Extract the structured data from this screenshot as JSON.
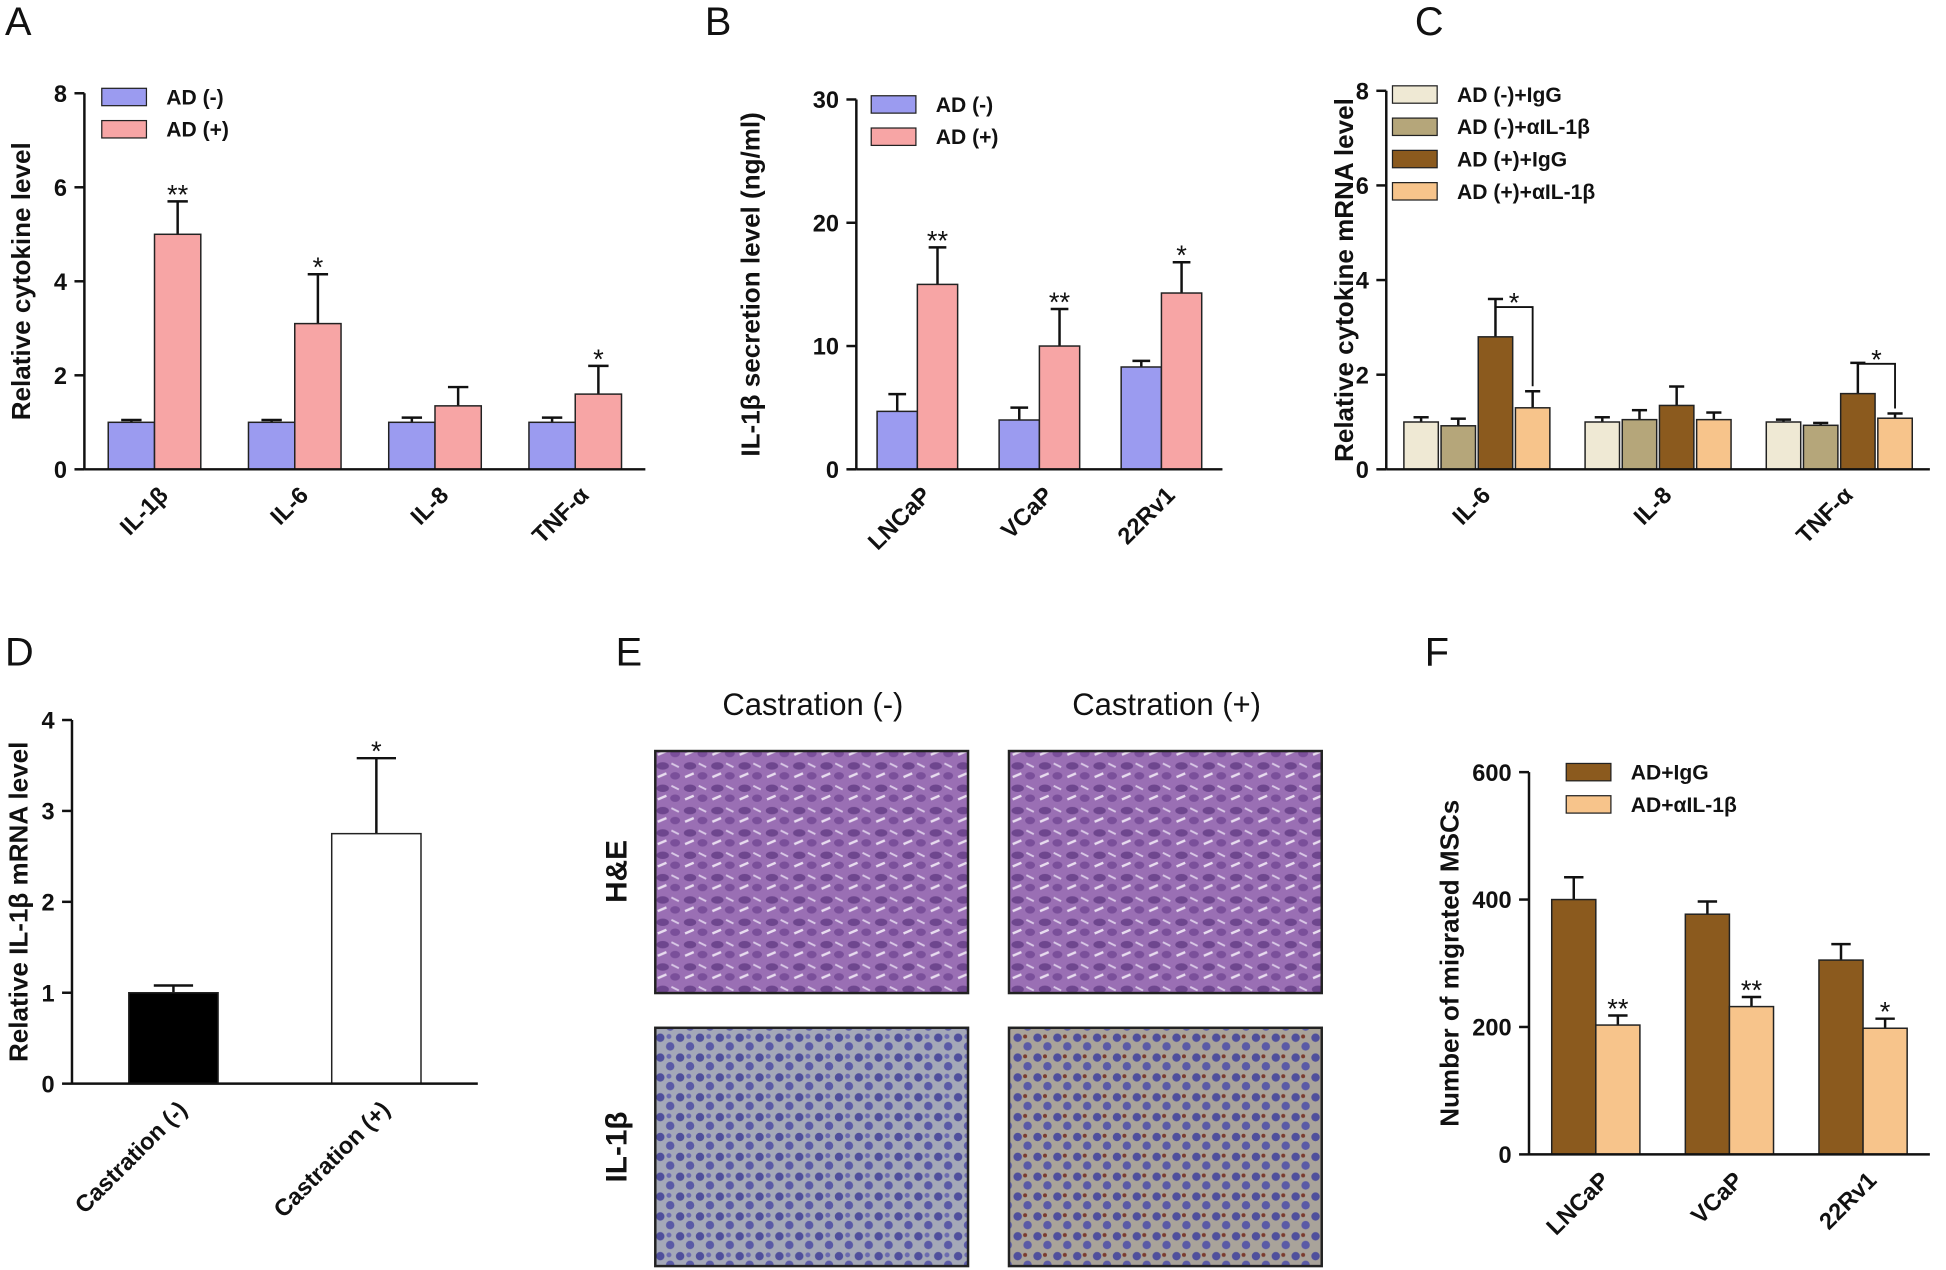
{
  "chart_data": [
    {
      "panel": "A",
      "type": "bar",
      "ylabel": "Relative cytokine level",
      "categories": [
        "IL-1β",
        "IL-6",
        "IL-8",
        "TNF-α"
      ],
      "ylim": [
        0,
        8
      ],
      "yticks": [
        0,
        2,
        4,
        6,
        8
      ],
      "legend": "upper left",
      "series": [
        {
          "name": "AD (-)",
          "color": "#9b9bf0",
          "values": [
            1.0,
            1.0,
            1.0,
            1.0
          ],
          "errors": [
            0.05,
            0.05,
            0.1,
            0.1
          ],
          "significance": [
            null,
            null,
            null,
            null
          ]
        },
        {
          "name": "AD (+)",
          "color": "#f7a5a5",
          "values": [
            5.0,
            3.1,
            1.35,
            1.6
          ],
          "errors": [
            0.7,
            1.05,
            0.4,
            0.6
          ],
          "significance": [
            "**",
            "*",
            null,
            "*"
          ]
        }
      ]
    },
    {
      "panel": "B",
      "type": "bar",
      "ylabel": "IL-1β secretion level (ng/ml)",
      "categories": [
        "LNCaP",
        "VCaP",
        "22Rv1"
      ],
      "ylim": [
        0,
        30
      ],
      "yticks": [
        0,
        10,
        20,
        30
      ],
      "legend": "upper left",
      "series": [
        {
          "name": "AD (-)",
          "color": "#9b9bf0",
          "values": [
            4.7,
            4.0,
            8.3
          ],
          "errors": [
            1.4,
            1.0,
            0.5
          ],
          "significance": [
            null,
            null,
            null
          ]
        },
        {
          "name": "AD (+)",
          "color": "#f7a5a5",
          "values": [
            15.0,
            10.0,
            14.3
          ],
          "errors": [
            3.0,
            3.0,
            2.5
          ],
          "significance": [
            "**",
            "**",
            "*"
          ]
        }
      ]
    },
    {
      "panel": "C",
      "type": "bar",
      "ylabel": "Relative cytokine mRNA level",
      "categories": [
        "IL-6",
        "IL-8",
        "TNF-α"
      ],
      "ylim": [
        0,
        8
      ],
      "yticks": [
        0,
        2,
        4,
        6,
        8
      ],
      "legend": "upper left",
      "significance_bracket": true,
      "series": [
        {
          "name": "AD (-)+IgG",
          "color": "#efe9d4",
          "values": [
            1.0,
            1.0,
            1.0
          ],
          "errors": [
            0.1,
            0.1,
            0.05
          ],
          "significance": [
            null,
            null,
            null
          ]
        },
        {
          "name": "AD (-)+αIL-1β",
          "color": "#b5a67a",
          "values": [
            0.92,
            1.05,
            0.93
          ],
          "errors": [
            0.15,
            0.2,
            0.05
          ],
          "significance": [
            null,
            null,
            null
          ]
        },
        {
          "name": "AD (+)+IgG",
          "color": "#8b5a1e",
          "values": [
            2.8,
            1.35,
            1.6
          ],
          "errors": [
            0.8,
            0.4,
            0.65
          ],
          "significance": [
            null,
            null,
            null
          ]
        },
        {
          "name": "AD (+)+αIL-1β",
          "color": "#f7c48b",
          "values": [
            1.3,
            1.05,
            1.08
          ],
          "errors": [
            0.35,
            0.15,
            0.1
          ],
          "significance": [
            "*",
            null,
            "*"
          ]
        }
      ]
    },
    {
      "panel": "D",
      "type": "bar",
      "ylabel": "Relative IL-1β mRNA level",
      "categories": [
        "Castration (-)",
        "Castration (+)"
      ],
      "ylim": [
        0,
        4
      ],
      "yticks": [
        0,
        1,
        2,
        3,
        4
      ],
      "values": [
        1.0,
        2.75
      ],
      "errors": [
        0.08,
        0.83
      ],
      "colors": [
        "#000000",
        "#ffffff"
      ],
      "significance": [
        null,
        "*"
      ]
    },
    {
      "panel": "F",
      "type": "bar",
      "ylabel": "Number of migrated MSCs",
      "categories": [
        "LNCaP",
        "VCaP",
        "22Rv1"
      ],
      "ylim": [
        0,
        600
      ],
      "yticks": [
        0,
        200,
        400,
        600
      ],
      "legend": "upper left",
      "series": [
        {
          "name": "AD+IgG",
          "color": "#8b5a1e",
          "values": [
            400,
            377,
            305
          ],
          "errors": [
            35,
            20,
            25
          ],
          "significance": [
            null,
            null,
            null
          ]
        },
        {
          "name": "AD+αIL-1β",
          "color": "#f7c48b",
          "values": [
            203,
            232,
            198
          ],
          "errors": [
            15,
            15,
            15
          ],
          "significance": [
            "**",
            "**",
            "*"
          ]
        }
      ]
    }
  ],
  "panel_e": {
    "panel": "E",
    "columns": [
      "Castration (-)",
      "Castration (+)"
    ],
    "rows": [
      "H&E",
      "IL-1β"
    ]
  }
}
